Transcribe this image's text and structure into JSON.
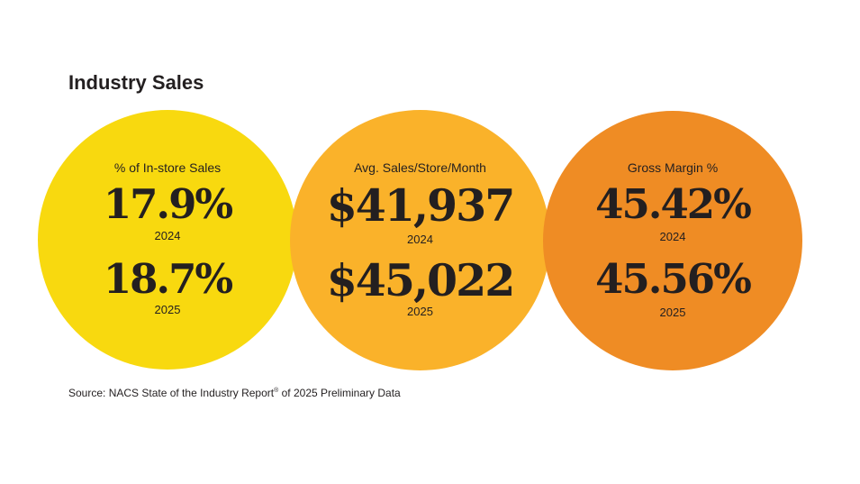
{
  "title": "Industry Sales",
  "colors": {
    "circle_1": "#f8d90f",
    "circle_2": "#fab22a",
    "circle_3": "#ef8c24",
    "text": "#231f20"
  },
  "stats": [
    {
      "label": "% of In-store Sales",
      "value_2024": "17.9%",
      "year_2024": "2024",
      "value_2025": "18.7%",
      "year_2025": "2025"
    },
    {
      "label": "Avg. Sales/Store/Month",
      "value_2024": "$41,937",
      "year_2024": "2024",
      "value_2025": "$45,022",
      "year_2025": "2025"
    },
    {
      "label": "Gross Margin %",
      "value_2024": "45.42%",
      "year_2024": "2024",
      "value_2025": "45.56%",
      "year_2025": "2025"
    }
  ],
  "source": {
    "prefix": "Source: NACS State of the Industry Report",
    "mark": "®",
    "suffix": " of 2025 Preliminary Data"
  }
}
